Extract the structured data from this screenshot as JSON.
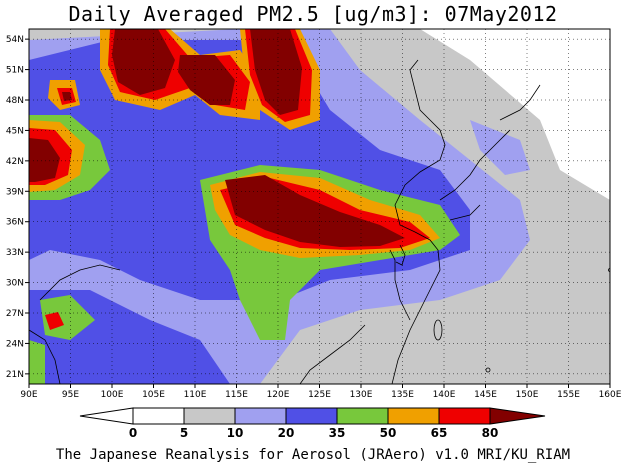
{
  "title": "Daily Averaged PM2.5 [ug/m3]: 07May2012",
  "footer": "The Japanese Reanalysis for Aerosol (JRAero) v1.0 MRI/KU_RIAM",
  "map": {
    "lon_range": [
      90,
      160
    ],
    "lat_range": [
      20,
      55
    ],
    "lon_ticks": [
      "90E",
      "95E",
      "100E",
      "105E",
      "110E",
      "115E",
      "120E",
      "125E",
      "130E",
      "135E",
      "140E",
      "145E",
      "150E",
      "155E",
      "160E"
    ],
    "lat_ticks": [
      "54N",
      "51N",
      "48N",
      "45N",
      "42N",
      "39N",
      "36N",
      "33N",
      "30N",
      "27N",
      "24N",
      "21N"
    ]
  },
  "colorbar": {
    "labels": [
      "0",
      "5",
      "10",
      "20",
      "35",
      "50",
      "65",
      "80"
    ],
    "bins": [
      {
        "range": "<0",
        "color": "#ffffff"
      },
      {
        "range": "0-5",
        "color": "#ffffff"
      },
      {
        "range": "5-10",
        "color": "#c8c8c8"
      },
      {
        "range": "10-20",
        "color": "#a0a0f0"
      },
      {
        "range": "20-35",
        "color": "#5050e6"
      },
      {
        "range": "35-50",
        "color": "#78c83c"
      },
      {
        "range": "50-65",
        "color": "#f0a000"
      },
      {
        "range": "65-80",
        "color": "#ef0000"
      },
      {
        "range": ">80",
        "color": "#820000"
      }
    ]
  },
  "colors": {
    "gray": "#c8c8c8",
    "light_blue": "#a0a0f0",
    "blue": "#5050e6",
    "green": "#78c83c",
    "orange": "#f0a000",
    "red": "#ef0000",
    "dark_red": "#820000"
  }
}
